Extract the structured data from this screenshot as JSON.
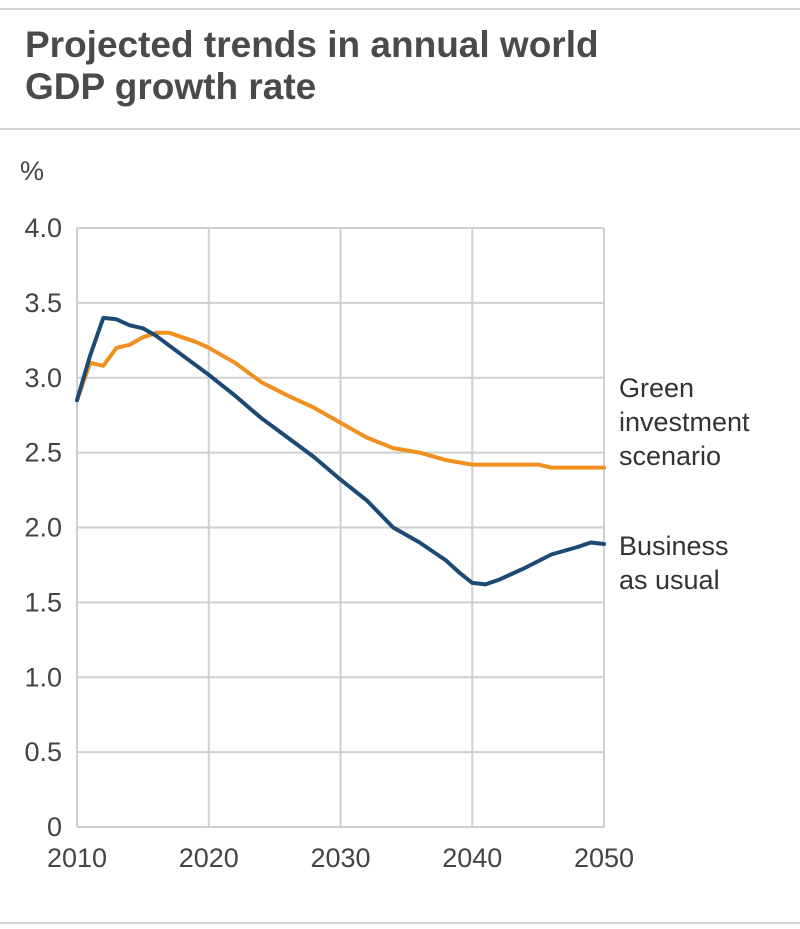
{
  "header": {
    "title_line1": "Projected trends in annual world",
    "title_line2": "GDP growth rate"
  },
  "chart_data": {
    "type": "line",
    "title": "Projected trends in annual world GDP growth rate",
    "ylabel": "%",
    "xlabel": "",
    "xlim": [
      2010,
      2050
    ],
    "ylim": [
      0,
      4.0
    ],
    "grid": true,
    "x_ticks": [
      "2010",
      "2020",
      "2030",
      "2040",
      "2050"
    ],
    "y_ticks": [
      "0",
      "0.5",
      "1.0",
      "1.5",
      "2.0",
      "2.5",
      "3.0",
      "3.5",
      "4.0"
    ],
    "series": [
      {
        "name": "Green investment scenario",
        "label_lines": [
          "Green",
          "investment",
          "scenario"
        ],
        "color": "#f0901e",
        "x": [
          2010,
          2011,
          2012,
          2013,
          2014,
          2015,
          2016,
          2017,
          2018,
          2019,
          2020,
          2022,
          2024,
          2026,
          2028,
          2030,
          2032,
          2034,
          2036,
          2038,
          2040,
          2042,
          2044,
          2045,
          2046,
          2048,
          2050
        ],
        "values": [
          2.85,
          3.1,
          3.08,
          3.2,
          3.22,
          3.27,
          3.3,
          3.3,
          3.27,
          3.24,
          3.2,
          3.1,
          2.97,
          2.88,
          2.8,
          2.7,
          2.6,
          2.53,
          2.5,
          2.45,
          2.42,
          2.42,
          2.42,
          2.42,
          2.4,
          2.4,
          2.4
        ]
      },
      {
        "name": "Business as usual",
        "label_lines": [
          "Business",
          "as usual"
        ],
        "color": "#1c4a75",
        "x": [
          2010,
          2011,
          2012,
          2013,
          2014,
          2015,
          2016,
          2018,
          2020,
          2022,
          2024,
          2026,
          2028,
          2030,
          2032,
          2034,
          2036,
          2038,
          2039,
          2040,
          2041,
          2042,
          2044,
          2046,
          2048,
          2049,
          2050
        ],
        "values": [
          2.85,
          3.15,
          3.4,
          3.39,
          3.35,
          3.33,
          3.28,
          3.15,
          3.02,
          2.88,
          2.73,
          2.6,
          2.47,
          2.32,
          2.18,
          2.0,
          1.9,
          1.78,
          1.7,
          1.63,
          1.62,
          1.65,
          1.73,
          1.82,
          1.87,
          1.9,
          1.89
        ]
      }
    ]
  },
  "colors": {
    "green_series": "#f0901e",
    "bau_series": "#1c4a75",
    "grid": "#cfcfcf"
  }
}
